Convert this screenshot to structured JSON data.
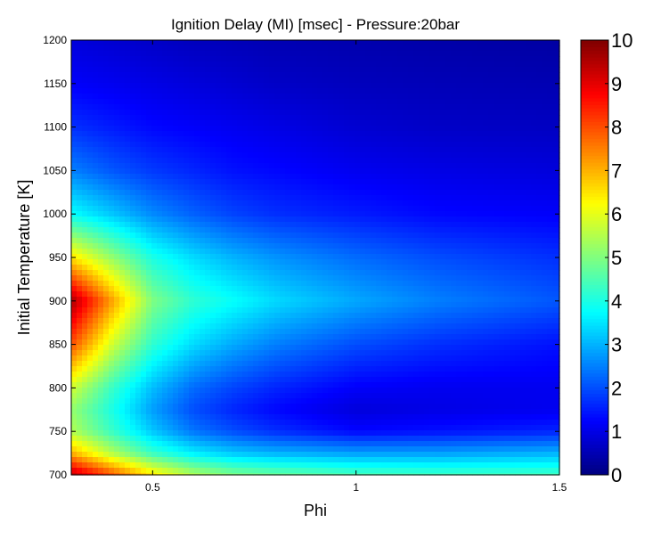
{
  "chart_data": {
    "type": "heatmap",
    "title": "Ignition Delay (MI) [msec] - Pressure:20bar",
    "xlabel": "Phi",
    "ylabel": "Initial Temperature [K]",
    "xlim": [
      0.3,
      1.5
    ],
    "ylim": [
      700,
      1200
    ],
    "xticks": [
      0.5,
      1,
      1.5
    ],
    "xtick_labels": [
      "0.5",
      "1",
      "1.5"
    ],
    "yticks": [
      700,
      750,
      800,
      850,
      900,
      950,
      1000,
      1050,
      1100,
      1150,
      1200
    ],
    "ytick_labels": [
      "700",
      "750",
      "800",
      "850",
      "900",
      "950",
      "1000",
      "1050",
      "1100",
      "1150",
      "1200"
    ],
    "colormap": "jet",
    "clim": [
      0,
      10
    ],
    "colorbar_ticks": [
      0,
      1,
      2,
      3,
      4,
      5,
      6,
      7,
      8,
      9,
      10
    ],
    "colorbar_tick_labels": [
      "0",
      "1",
      "2",
      "3",
      "4",
      "5",
      "6",
      "7",
      "8",
      "9",
      "10"
    ],
    "x": [
      0.3,
      0.4,
      0.5,
      0.6,
      0.7,
      0.8,
      1.0,
      1.2,
      1.5
    ],
    "y": [
      700,
      725,
      750,
      775,
      800,
      850,
      900,
      950,
      1000,
      1050,
      1100,
      1150,
      1200
    ],
    "z": [
      [
        9.5,
        8.0,
        6.5,
        5.5,
        5.0,
        4.8,
        4.5,
        4.4,
        4.4
      ],
      [
        7.0,
        5.5,
        4.3,
        3.6,
        3.2,
        3.0,
        2.8,
        2.8,
        3.0
      ],
      [
        5.5,
        4.3,
        3.2,
        2.4,
        2.0,
        1.7,
        1.3,
        1.4,
        1.6
      ],
      [
        5.2,
        4.0,
        2.8,
        2.0,
        1.6,
        1.3,
        0.9,
        1.0,
        1.1
      ],
      [
        5.8,
        4.3,
        3.1,
        2.3,
        1.9,
        1.6,
        1.2,
        1.1,
        1.1
      ],
      [
        8.0,
        5.8,
        4.2,
        3.4,
        2.9,
        2.5,
        2.0,
        1.7,
        1.4
      ],
      [
        9.6,
        7.2,
        5.0,
        4.2,
        3.8,
        3.4,
        2.9,
        2.5,
        2.1
      ],
      [
        6.5,
        5.2,
        4.0,
        3.4,
        3.0,
        2.7,
        2.3,
        2.0,
        1.7
      ],
      [
        3.8,
        3.2,
        2.6,
        2.2,
        1.9,
        1.7,
        1.5,
        1.3,
        1.2
      ],
      [
        2.5,
        2.1,
        1.8,
        1.6,
        1.4,
        1.3,
        1.1,
        1.0,
        0.9
      ],
      [
        1.7,
        1.5,
        1.3,
        1.2,
        1.1,
        1.0,
        0.8,
        0.7,
        0.65
      ],
      [
        1.2,
        1.1,
        1.0,
        0.9,
        0.8,
        0.7,
        0.6,
        0.55,
        0.5
      ],
      [
        0.9,
        0.8,
        0.7,
        0.6,
        0.55,
        0.5,
        0.45,
        0.4,
        0.35
      ]
    ]
  }
}
